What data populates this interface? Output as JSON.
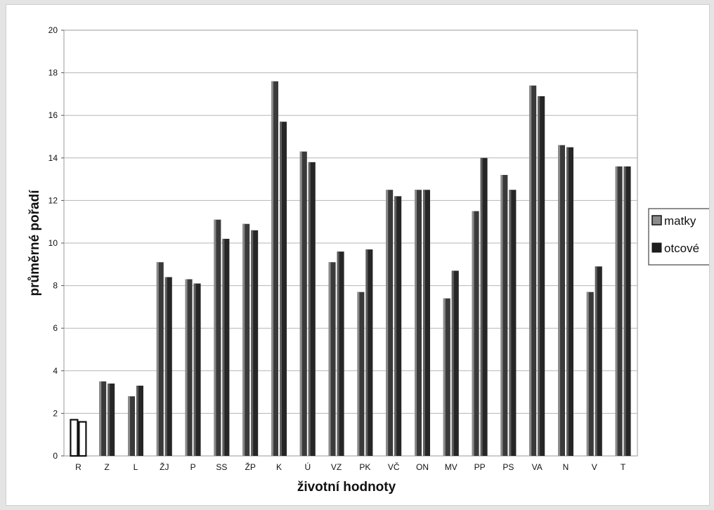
{
  "chart_data": {
    "type": "bar",
    "title": "",
    "xlabel": "životní hodnoty",
    "ylabel": "průměrné pořadí",
    "ylim": [
      0,
      20
    ],
    "yticks": [
      0,
      2,
      4,
      6,
      8,
      10,
      12,
      14,
      16,
      18,
      20
    ],
    "grid": true,
    "legend_position": "right",
    "categories": [
      "R",
      "Z",
      "L",
      "ŽJ",
      "P",
      "SS",
      "ŽP",
      "K",
      "Ú",
      "VZ",
      "PK",
      "VČ",
      "ON",
      "MV",
      "PP",
      "PS",
      "VA",
      "N",
      "V",
      "T"
    ],
    "series": [
      {
        "name": "matky",
        "values": [
          1.7,
          3.5,
          2.8,
          9.1,
          8.3,
          11.1,
          10.9,
          17.6,
          14.3,
          9.1,
          7.7,
          12.5,
          12.5,
          7.4,
          11.5,
          13.2,
          17.4,
          14.6,
          7.7,
          13.6
        ],
        "color": "#3a3a3a",
        "highlight": "#8a8a8a"
      },
      {
        "name": "otcové",
        "values": [
          1.6,
          3.4,
          3.3,
          8.4,
          8.1,
          10.2,
          10.6,
          15.7,
          13.8,
          9.6,
          9.7,
          12.2,
          12.5,
          8.7,
          14.0,
          12.5,
          16.9,
          14.5,
          8.9,
          13.6
        ],
        "color": "#262626",
        "highlight": "#5e5e5e"
      }
    ],
    "outlined_bar_category": "R"
  }
}
